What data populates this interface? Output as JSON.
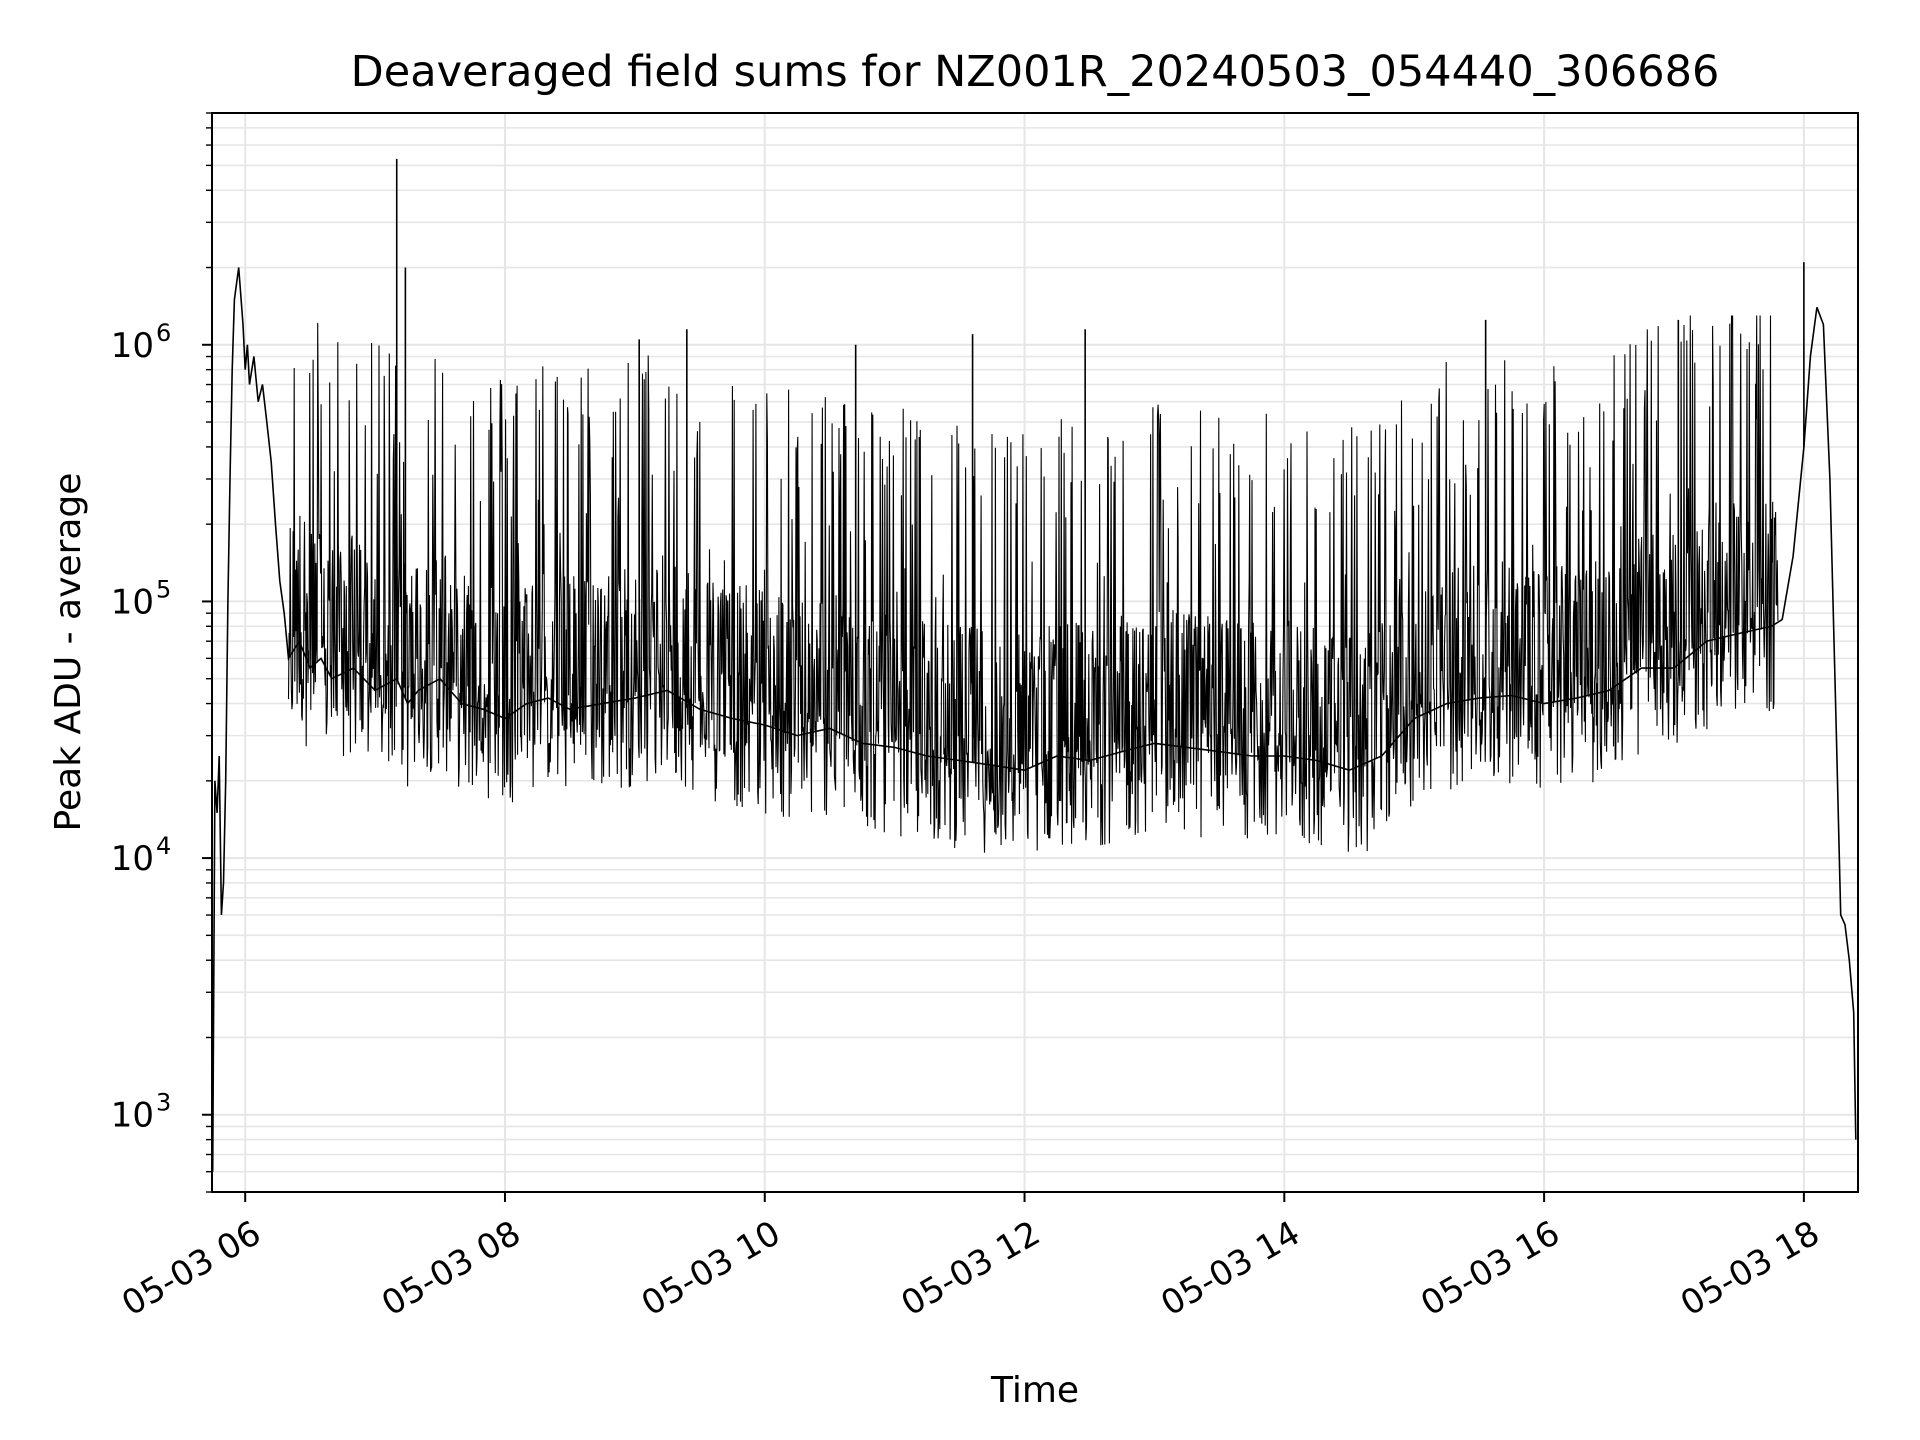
{
  "chart_data": {
    "type": "line",
    "title": "Deaveraged field sums for NZ001R_20240503_054440_306686",
    "xlabel": "Time",
    "ylabel": "Peak ADU - average",
    "yscale": "log",
    "ylim": [
      500,
      8000000
    ],
    "xlim": [
      "2024-05-03 05:44:40",
      "2024-05-03 18:25:00"
    ],
    "grid": true,
    "legend": "none",
    "line_color": "#000000",
    "grid_color": "#e6e6e6",
    "x_ticks": [
      {
        "t": "2024-05-03 06:00",
        "label": "05-03 06"
      },
      {
        "t": "2024-05-03 08:00",
        "label": "05-03 08"
      },
      {
        "t": "2024-05-03 10:00",
        "label": "05-03 10"
      },
      {
        "t": "2024-05-03 12:00",
        "label": "05-03 12"
      },
      {
        "t": "2024-05-03 14:00",
        "label": "05-03 14"
      },
      {
        "t": "2024-05-03 16:00",
        "label": "05-03 16"
      },
      {
        "t": "2024-05-03 18:00",
        "label": "05-03 18"
      }
    ],
    "y_ticks": [
      {
        "value": 1000,
        "base": "10",
        "exp": "3"
      },
      {
        "value": 10000,
        "base": "10",
        "exp": "4"
      },
      {
        "value": 100000,
        "base": "10",
        "exp": "5"
      },
      {
        "value": 1000000,
        "base": "10",
        "exp": "6"
      }
    ],
    "series": [
      {
        "x": [
          "2024-05-03 05:45",
          "2024-05-03 05:46",
          "2024-05-03 05:47",
          "2024-05-03 05:48",
          "2024-05-03 05:49",
          "2024-05-03 05:50",
          "2024-05-03 05:51",
          "2024-05-03 05:52",
          "2024-05-03 05:53",
          "2024-05-03 05:54",
          "2024-05-03 05:55",
          "2024-05-03 05:57",
          "2024-05-03 05:59",
          "2024-05-03 06:00",
          "2024-05-03 06:01",
          "2024-05-03 06:02",
          "2024-05-03 06:04",
          "2024-05-03 06:06",
          "2024-05-03 06:08",
          "2024-05-03 06:10",
          "2024-05-03 06:12",
          "2024-05-03 06:14",
          "2024-05-03 06:16",
          "2024-05-03 06:18",
          "2024-05-03 06:20",
          "2024-05-03 06:25",
          "2024-05-03 06:30",
          "2024-05-03 06:35",
          "2024-05-03 06:40",
          "2024-05-03 06:50",
          "2024-05-03 07:00",
          "2024-05-03 07:10",
          "2024-05-03 07:15",
          "2024-05-03 07:20",
          "2024-05-03 07:30",
          "2024-05-03 07:40",
          "2024-05-03 07:50",
          "2024-05-03 08:00",
          "2024-05-03 08:10",
          "2024-05-03 08:20",
          "2024-05-03 08:30",
          "2024-05-03 08:45",
          "2024-05-03 09:00",
          "2024-05-03 09:15",
          "2024-05-03 09:30",
          "2024-05-03 09:45",
          "2024-05-03 10:00",
          "2024-05-03 10:15",
          "2024-05-03 10:30",
          "2024-05-03 10:45",
          "2024-05-03 11:00",
          "2024-05-03 11:15",
          "2024-05-03 11:30",
          "2024-05-03 11:45",
          "2024-05-03 12:00",
          "2024-05-03 12:15",
          "2024-05-03 12:30",
          "2024-05-03 12:45",
          "2024-05-03 13:00",
          "2024-05-03 13:15",
          "2024-05-03 13:30",
          "2024-05-03 13:45",
          "2024-05-03 14:00",
          "2024-05-03 14:15",
          "2024-05-03 14:30",
          "2024-05-03 14:45",
          "2024-05-03 15:00",
          "2024-05-03 15:15",
          "2024-05-03 15:30",
          "2024-05-03 15:45",
          "2024-05-03 16:00",
          "2024-05-03 16:15",
          "2024-05-03 16:30",
          "2024-05-03 16:45",
          "2024-05-03 17:00",
          "2024-05-03 17:15",
          "2024-05-03 17:30",
          "2024-05-03 17:45",
          "2024-05-03 17:50",
          "2024-05-03 17:55",
          "2024-05-03 18:00",
          "2024-05-03 18:03",
          "2024-05-03 18:06",
          "2024-05-03 18:09",
          "2024-05-03 18:12",
          "2024-05-03 18:15",
          "2024-05-03 18:17",
          "2024-05-03 18:19",
          "2024-05-03 18:21",
          "2024-05-03 18:23",
          "2024-05-03 18:24"
        ],
        "y": [
          600,
          20000,
          15000,
          25000,
          6000,
          8000,
          20000,
          100000,
          300000,
          800000,
          1500000,
          2000000,
          1200000,
          800000,
          1000000,
          700000,
          900000,
          600000,
          700000,
          500000,
          350000,
          200000,
          120000,
          90000,
          60000,
          70000,
          55000,
          60000,
          50000,
          55000,
          45000,
          50000,
          40000,
          45000,
          50000,
          40000,
          38000,
          35000,
          40000,
          42000,
          38000,
          40000,
          42000,
          45000,
          38000,
          35000,
          33000,
          30000,
          32000,
          28000,
          27000,
          25000,
          24000,
          23000,
          22000,
          25000,
          24000,
          26000,
          28000,
          27000,
          26000,
          25000,
          25000,
          24000,
          22000,
          25000,
          35000,
          40000,
          42000,
          43000,
          40000,
          42000,
          45000,
          55000,
          55000,
          70000,
          75000,
          80000,
          85000,
          150000,
          400000,
          900000,
          1400000,
          1200000,
          300000,
          30000,
          6000,
          5500,
          4000,
          2500,
          800
        ]
      }
    ],
    "peaks": [
      {
        "t": "2024-05-03 07:10",
        "value": 5300000
      },
      {
        "t": "2024-05-03 07:14",
        "value": 2000000
      },
      {
        "t": "2024-05-03 09:02",
        "value": 1050000
      },
      {
        "t": "2024-05-03 09:24",
        "value": 1150000
      },
      {
        "t": "2024-05-03 10:42",
        "value": 1000000
      },
      {
        "t": "2024-05-03 11:36",
        "value": 1100000
      },
      {
        "t": "2024-05-03 12:28",
        "value": 1150000
      },
      {
        "t": "2024-05-03 15:33",
        "value": 1250000
      },
      {
        "t": "2024-05-03 17:02",
        "value": 1250000
      },
      {
        "t": "2024-05-03 18:00",
        "value": 2100000
      }
    ]
  }
}
